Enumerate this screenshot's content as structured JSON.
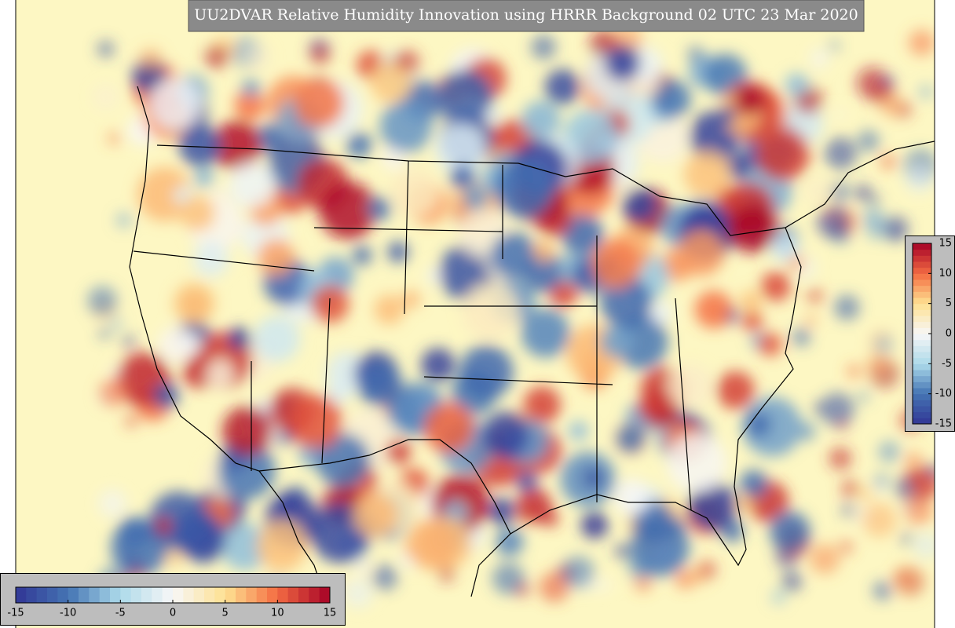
{
  "title": "UU2DVAR Relative Humidity Innovation using HRRR Background 02 UTC 23 Mar 2020",
  "colorbars": [
    {
      "orientation": "horizontal",
      "range": [
        -15,
        15
      ],
      "ticks": [
        -15,
        -10,
        -5,
        0,
        5,
        10,
        15
      ]
    },
    {
      "orientation": "vertical",
      "range": [
        -15,
        15
      ],
      "ticks": [
        15,
        10,
        5,
        0,
        -5,
        -10,
        -15
      ]
    }
  ]
}
